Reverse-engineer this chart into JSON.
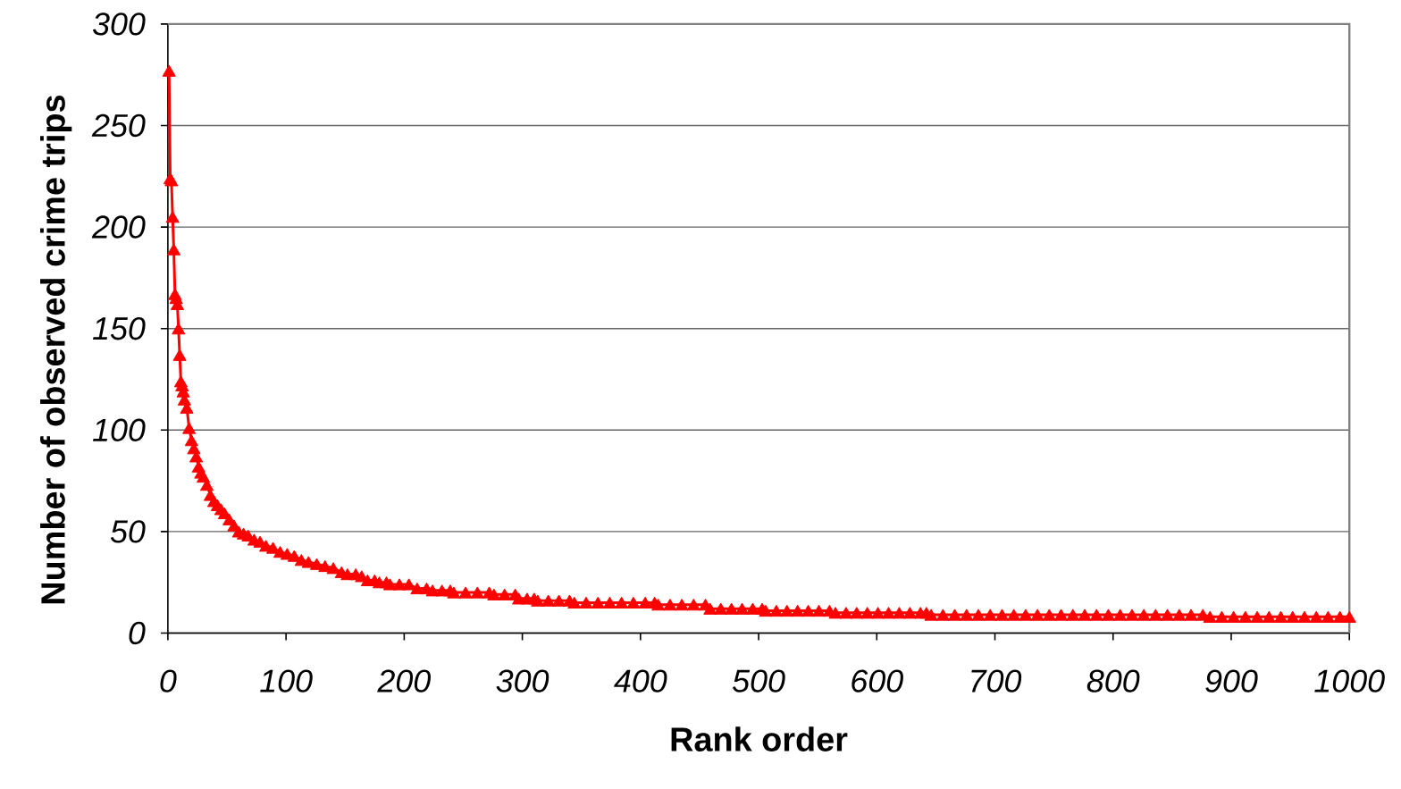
{
  "chart_data": {
    "type": "line",
    "xlabel": "Rank order",
    "ylabel": "Number of observed crime trips",
    "x": [
      1,
      2,
      3,
      4,
      5,
      6,
      7,
      8,
      9,
      10,
      11,
      12,
      13,
      14,
      16,
      18,
      20,
      22,
      24,
      26,
      28,
      30,
      33,
      36,
      39,
      42,
      45,
      48,
      52,
      56,
      60,
      64,
      68,
      73,
      78,
      83,
      89,
      95,
      101,
      107,
      113,
      119,
      126,
      133,
      140,
      147,
      152,
      159,
      164,
      169,
      175,
      179,
      185,
      188,
      196,
      204,
      211,
      219,
      224,
      232,
      239,
      242,
      252,
      262,
      272,
      276,
      285,
      294,
      297,
      304,
      310,
      313,
      322,
      331,
      340,
      344,
      354,
      364,
      374,
      384,
      394,
      404,
      412,
      415,
      425,
      435,
      445,
      455,
      459,
      468,
      477,
      486,
      495,
      503,
      506,
      515,
      524,
      533,
      542,
      551,
      560,
      565,
      574,
      583,
      592,
      601,
      610,
      619,
      628,
      637,
      642,
      646,
      656,
      666,
      676,
      686,
      696,
      706,
      716,
      726,
      736,
      746,
      756,
      766,
      776,
      786,
      796,
      806,
      816,
      826,
      836,
      846,
      856,
      866,
      876,
      882,
      892,
      902,
      912,
      922,
      932,
      942,
      952,
      962,
      972,
      982,
      992,
      1000
    ],
    "series": [
      {
        "color": "#ff0000",
        "values": [
          277,
          224,
          223,
          205,
          189,
          167,
          165,
          162,
          150,
          137,
          124,
          122,
          119,
          115,
          111,
          101,
          95,
          91,
          87,
          82,
          79,
          77,
          73,
          68,
          65,
          63,
          61,
          59,
          56,
          53,
          50,
          49,
          48,
          46,
          45,
          43,
          42,
          40,
          39,
          38,
          36,
          35,
          34,
          33,
          32,
          30,
          29,
          29,
          28,
          26,
          26,
          25,
          25,
          24,
          24,
          24,
          22,
          22,
          21,
          21,
          21,
          20,
          20,
          20,
          20,
          19,
          19,
          19,
          17,
          17,
          17,
          16,
          16,
          16,
          16,
          15,
          15,
          15,
          15,
          15,
          15,
          15,
          15,
          14,
          14,
          14,
          14,
          14,
          12,
          12,
          12,
          12,
          12,
          12,
          11,
          11,
          11,
          11,
          11,
          11,
          11,
          10,
          10,
          10,
          10,
          10,
          10,
          10,
          10,
          10,
          10,
          9,
          9,
          9,
          9,
          9,
          9,
          9,
          9,
          9,
          9,
          9,
          9,
          9,
          9,
          9,
          9,
          9,
          9,
          9,
          9,
          9,
          9,
          9,
          9,
          8,
          8,
          8,
          8,
          8,
          8,
          8,
          8,
          8,
          8,
          8,
          8,
          8
        ]
      }
    ],
    "xlim": [
      0,
      1000
    ],
    "ylim": [
      0,
      300
    ],
    "xticks": [
      0,
      100,
      200,
      300,
      400,
      500,
      600,
      700,
      800,
      900,
      1000
    ],
    "yticks": [
      0,
      50,
      100,
      150,
      200,
      250,
      300
    ],
    "grid": "y",
    "marker": "triangle",
    "line_style": "solid"
  }
}
